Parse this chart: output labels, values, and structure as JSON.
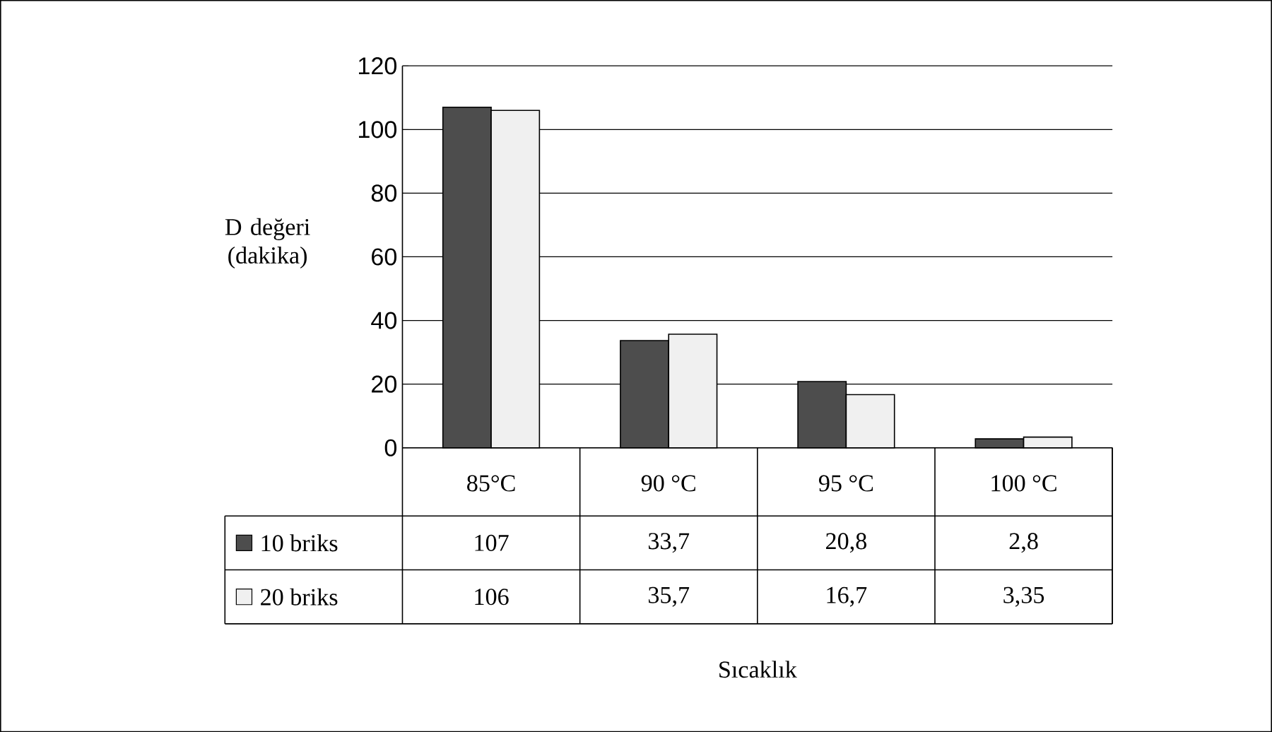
{
  "chart_data": {
    "type": "bar",
    "categories": [
      "85°C",
      "90 °C",
      "95 °C",
      "100 °C"
    ],
    "annotations": [
      "Sıcaklık"
    ],
    "ylabel": "D değeri (dakika)",
    "ylim": [
      0,
      120
    ],
    "yticks": [
      0,
      20,
      40,
      60,
      80,
      100,
      120
    ],
    "grid": "y",
    "legend": "bottom left",
    "tick_labels": "y",
    "series": [
      {
        "name": "10 briks",
        "color": "#4d4d4d",
        "values": [
          107,
          33.7,
          20.8,
          2.8
        ],
        "value_labels": [
          "107",
          "33,7",
          "20,8",
          "2,8"
        ]
      },
      {
        "name": "20 briks",
        "color": "#f0f0f0",
        "values": [
          106,
          35.7,
          16.7,
          3.35
        ],
        "value_labels": [
          "106",
          "35,7",
          "16,7",
          "3,35"
        ]
      }
    ]
  }
}
